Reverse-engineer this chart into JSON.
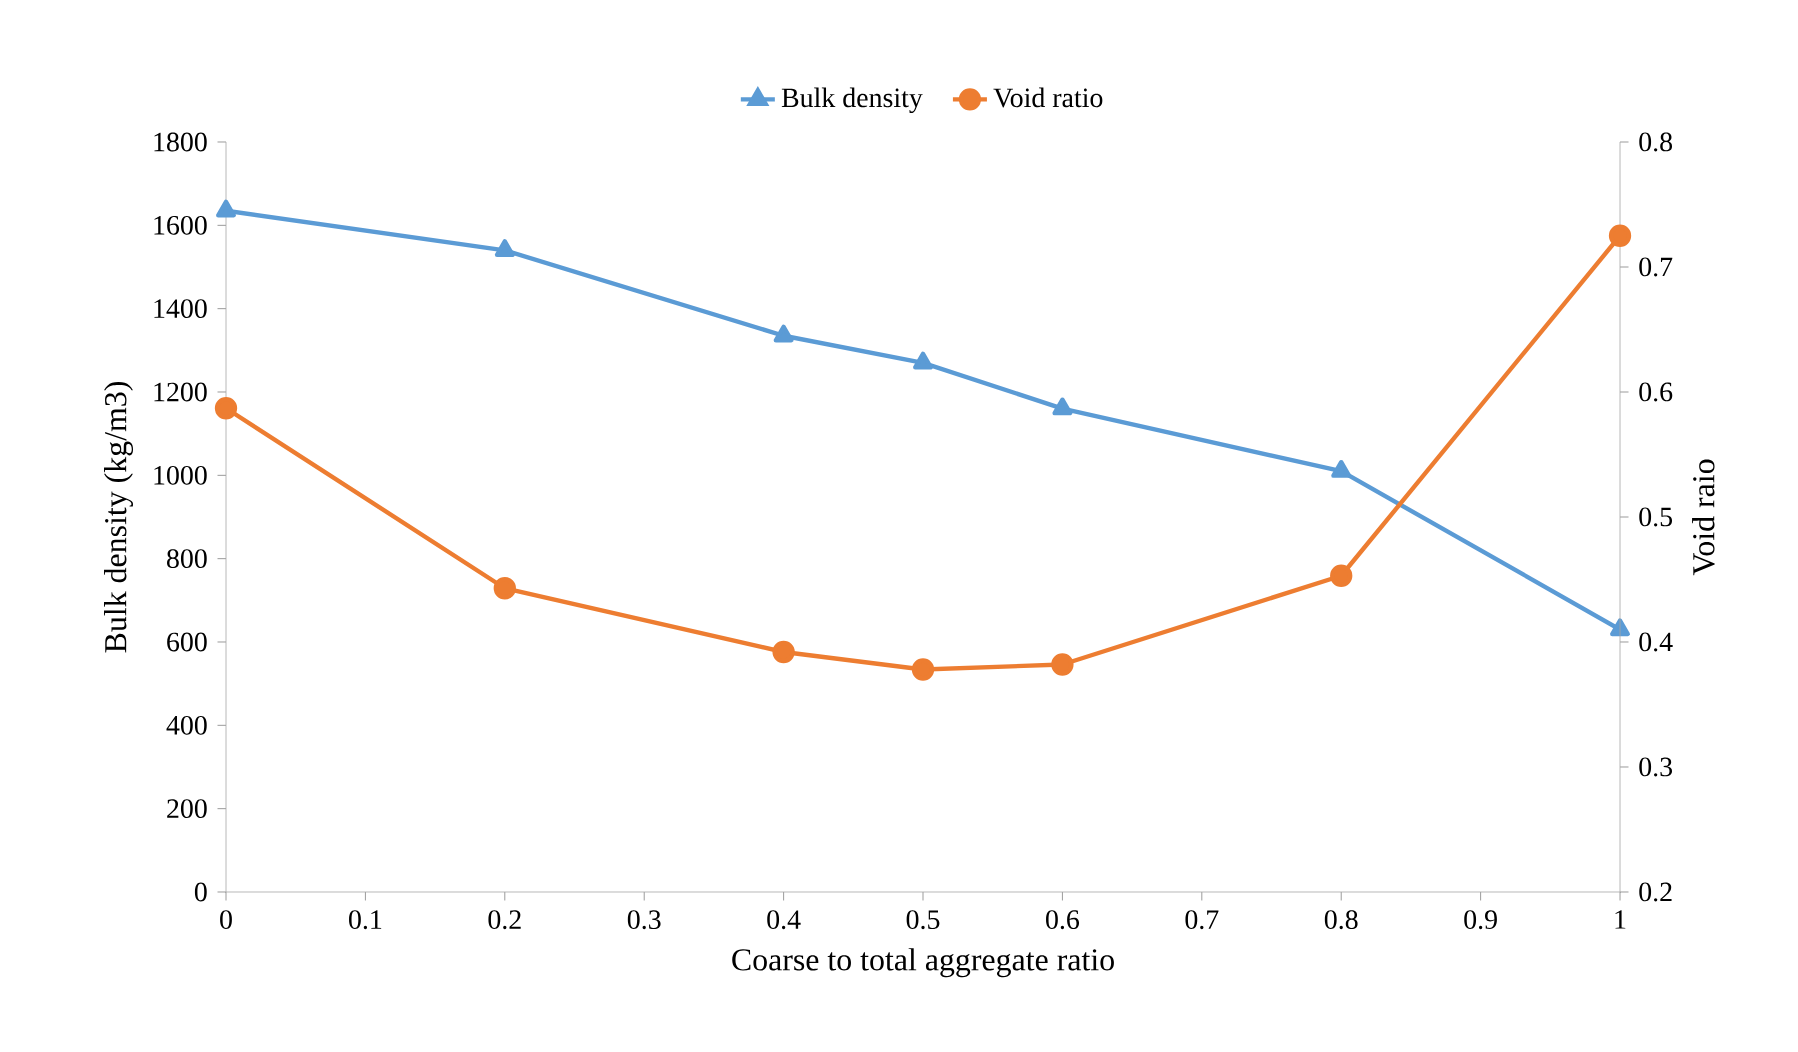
{
  "chart_data": {
    "type": "line",
    "xlabel": "Coarse to total aggregate ratio",
    "ylabel": "Bulk density (kg/m3)",
    "y2label": "Void raio",
    "x": [
      0,
      0.2,
      0.4,
      0.5,
      0.6,
      0.8,
      1
    ],
    "xlim": [
      0,
      1
    ],
    "xticks": [
      0,
      0.1,
      0.2,
      0.3,
      0.4,
      0.5,
      0.6,
      0.7,
      0.8,
      0.9,
      1
    ],
    "ylim": [
      0,
      1800
    ],
    "yticks": [
      0,
      200,
      400,
      600,
      800,
      1000,
      1200,
      1400,
      1600,
      1800
    ],
    "y2lim": [
      0.2,
      0.8
    ],
    "y2ticks": [
      0.2,
      0.3,
      0.4,
      0.5,
      0.6,
      0.7,
      0.8
    ],
    "legend": "top",
    "grid": false,
    "line_style": "solid",
    "series": [
      {
        "name": "Bulk density",
        "color": "#5b9bd5",
        "marker": "triangle",
        "values": [
          1635,
          1540,
          1335,
          1270,
          1160,
          1010,
          630
        ]
      },
      {
        "name": "Void ratio",
        "color": "#ed7d31",
        "marker": "circle",
        "axis": "y2",
        "values": [
          0.587,
          0.443,
          0.392,
          0.378,
          0.382,
          0.453,
          0.725
        ]
      }
    ]
  }
}
